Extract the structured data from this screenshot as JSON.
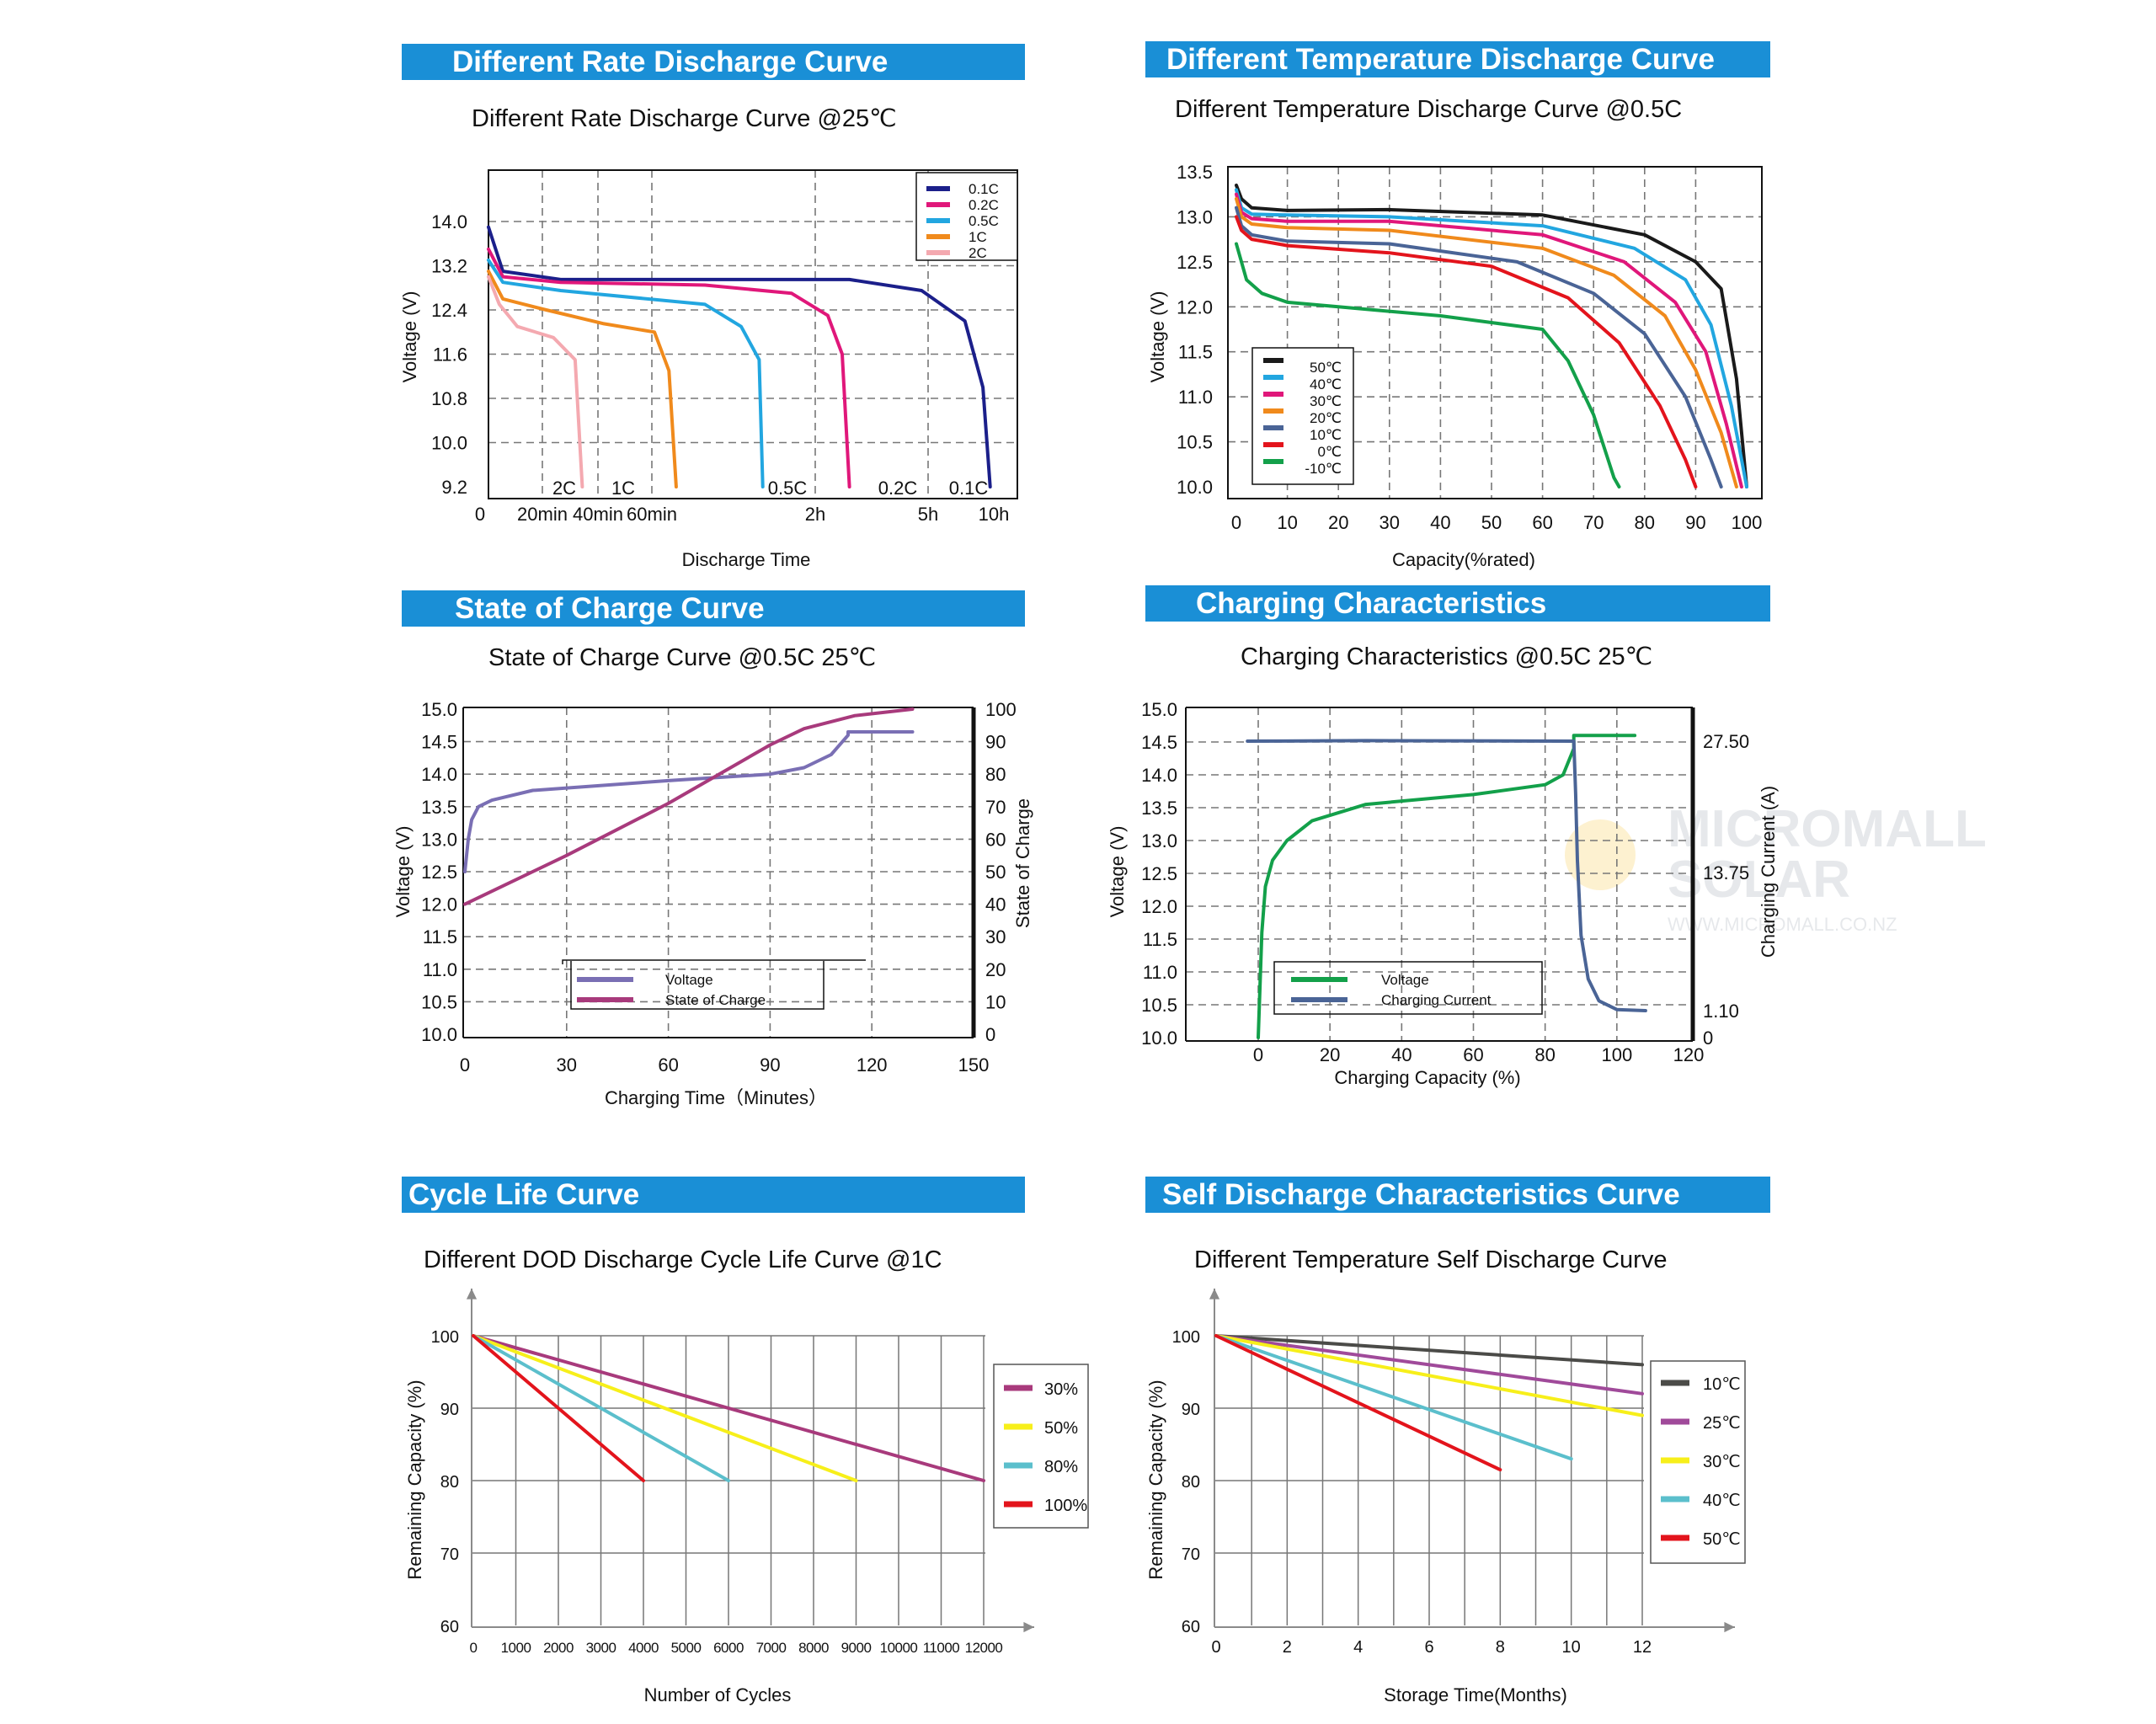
{
  "colors": {
    "banner": "#1a8fd6",
    "grid": "#777777",
    "navy": "#1b1f8a",
    "magenta": "#e0177a",
    "sky": "#22a6e0",
    "orange": "#f08a1c",
    "pink": "#f4a9b0",
    "black": "#1a1a1a",
    "steel": "#4a6496",
    "red": "#e3141c",
    "green": "#13a04a",
    "purple": "#7a6fb4",
    "plum": "#a83a7c",
    "darkgray": "#4b4b48",
    "violet": "#a04a9a",
    "yellow": "#f7ef1a",
    "teal": "#5bbfcc"
  },
  "watermark": {
    "line1": "MICROMALL",
    "line2": "SOLAR",
    "line3": "WWW.MICROMALL.CO.NZ"
  },
  "panels": [
    {
      "banner": "Different Rate Discharge Curve",
      "subtitle": "Different Rate Discharge Curve @25℃"
    },
    {
      "banner": "Different Temperature Discharge Curve",
      "subtitle": "Different Temperature Discharge Curve @0.5C"
    },
    {
      "banner": "State of Charge Curve",
      "subtitle": "State of Charge Curve @0.5C 25℃"
    },
    {
      "banner": "Charging Characteristics",
      "subtitle": "Charging Characteristics @0.5C  25℃"
    },
    {
      "banner": "Cycle Life Curve",
      "subtitle": "Different DOD Discharge Cycle Life Curve @1C"
    },
    {
      "banner": "Self Discharge Characteristics Curve",
      "subtitle": "Different Temperature Self Discharge Curve"
    }
  ],
  "chart_data": [
    {
      "type": "line",
      "title": "Different Rate Discharge Curve @25℃",
      "xlabel": "Discharge Time",
      "ylabel": "Voltage (V)",
      "x_tick_labels": [
        "0",
        "20min",
        "40min",
        "60min",
        "2h",
        "5h",
        "10h"
      ],
      "y_ticks": [
        "9.2",
        "10.0",
        "10.8",
        "11.6",
        "12.4",
        "13.2",
        "14.0"
      ],
      "ylim": [
        9.2,
        14.0
      ],
      "legend_position": "top-right",
      "curve_labels": [
        "2C",
        "1C",
        "0.5C",
        "0.2C",
        "0.1C"
      ],
      "series": [
        {
          "name": "0.1C",
          "color": "#1b1f8a",
          "x": [
            0,
            0.2,
            1,
            3,
            5,
            6,
            6.6,
            6.85,
            6.95
          ],
          "y": [
            13.9,
            13.1,
            12.95,
            12.95,
            12.95,
            12.75,
            12.2,
            11.0,
            9.2
          ]
        },
        {
          "name": "0.2C",
          "color": "#e0177a",
          "x": [
            0,
            0.2,
            1,
            3,
            4.2,
            4.7,
            4.9,
            5.0
          ],
          "y": [
            13.5,
            13.0,
            12.9,
            12.85,
            12.7,
            12.3,
            11.6,
            9.2
          ]
        },
        {
          "name": "0.5C",
          "color": "#22a6e0",
          "x": [
            0,
            0.2,
            1,
            3,
            3.5,
            3.75,
            3.8
          ],
          "y": [
            13.3,
            12.9,
            12.75,
            12.5,
            12.1,
            11.5,
            9.2
          ]
        },
        {
          "name": "1C",
          "color": "#f08a1c",
          "x": [
            0,
            0.2,
            0.8,
            1.6,
            2.3,
            2.5,
            2.6
          ],
          "y": [
            13.1,
            12.6,
            12.4,
            12.15,
            12.0,
            11.3,
            9.2
          ]
        },
        {
          "name": "2C",
          "color": "#f4a9b0",
          "x": [
            0,
            0.15,
            0.4,
            0.9,
            1.2,
            1.3
          ],
          "y": [
            13.0,
            12.5,
            12.1,
            11.9,
            11.5,
            9.2
          ]
        }
      ]
    },
    {
      "type": "line",
      "title": "Different Temperature Discharge Curve @0.5C",
      "xlabel": "Capacity(%rated)",
      "ylabel": "Voltage (V)",
      "xlim": [
        0,
        100
      ],
      "ylim": [
        10.0,
        13.5
      ],
      "x_ticks": [
        "0",
        "10",
        "20",
        "30",
        "40",
        "50",
        "60",
        "70",
        "80",
        "90",
        "100"
      ],
      "y_ticks": [
        "10.0",
        "10.5",
        "11.0",
        "11.5",
        "12.0",
        "12.5",
        "13.0",
        "13.5"
      ],
      "legend_position": "bottom-left",
      "series": [
        {
          "name": "50℃",
          "color": "#1a1a1a",
          "x": [
            0,
            1,
            3,
            10,
            30,
            60,
            80,
            90,
            95,
            98,
            100
          ],
          "y": [
            13.35,
            13.2,
            13.1,
            13.07,
            13.08,
            13.02,
            12.8,
            12.5,
            12.2,
            11.2,
            10.0
          ]
        },
        {
          "name": "40℃",
          "color": "#22a6e0",
          "x": [
            0,
            1,
            3,
            10,
            30,
            60,
            78,
            88,
            93,
            97,
            100
          ],
          "y": [
            13.3,
            13.1,
            13.03,
            13.02,
            13.0,
            12.9,
            12.65,
            12.3,
            11.8,
            10.9,
            10.0
          ]
        },
        {
          "name": "30℃",
          "color": "#e0177a",
          "x": [
            0,
            1,
            3,
            10,
            30,
            60,
            76,
            86,
            92,
            96,
            99
          ],
          "y": [
            13.25,
            13.05,
            12.98,
            12.95,
            12.95,
            12.8,
            12.5,
            12.05,
            11.5,
            10.7,
            10.0
          ]
        },
        {
          "name": "20℃",
          "color": "#f08a1c",
          "x": [
            0,
            1,
            3,
            10,
            30,
            60,
            74,
            84,
            90,
            95,
            98
          ],
          "y": [
            13.2,
            13.0,
            12.92,
            12.88,
            12.85,
            12.65,
            12.35,
            11.9,
            11.3,
            10.6,
            10.0
          ]
        },
        {
          "name": "10℃",
          "color": "#4a6496",
          "x": [
            0,
            1,
            3,
            10,
            30,
            55,
            70,
            80,
            88,
            93,
            95
          ],
          "y": [
            13.1,
            12.9,
            12.8,
            12.73,
            12.7,
            12.5,
            12.15,
            11.7,
            11.0,
            10.3,
            10.0
          ]
        },
        {
          "name": "0℃",
          "color": "#e3141c",
          "x": [
            0,
            1,
            3,
            10,
            30,
            50,
            65,
            75,
            83,
            88,
            90
          ],
          "y": [
            13.0,
            12.85,
            12.75,
            12.68,
            12.6,
            12.45,
            12.1,
            11.6,
            10.9,
            10.3,
            10.0
          ]
        },
        {
          "name": "-10℃",
          "color": "#13a04a",
          "x": [
            0,
            2,
            5,
            10,
            20,
            40,
            60,
            65,
            70,
            74,
            75
          ],
          "y": [
            12.7,
            12.3,
            12.15,
            12.05,
            12.0,
            11.9,
            11.75,
            11.4,
            10.8,
            10.1,
            10.0
          ]
        }
      ]
    },
    {
      "type": "line",
      "title": "State of Charge Curve @0.5C 25℃",
      "xlabel": "Charging Time（Minutes）",
      "ylabel": "Voltage (V)",
      "y2label": "State of Charge",
      "xlim": [
        0,
        150
      ],
      "ylim": [
        10.0,
        15.0
      ],
      "y2lim": [
        0,
        100
      ],
      "x_ticks": [
        "0",
        "30",
        "60",
        "90",
        "120",
        "150"
      ],
      "y_ticks": [
        "10.0",
        "10.5",
        "11.0",
        "11.5",
        "12.0",
        "12.5",
        "13.0",
        "13.5",
        "14.0",
        "14.5",
        "15.0"
      ],
      "y2_ticks": [
        "0",
        "10",
        "20",
        "30",
        "40",
        "50",
        "60",
        "70",
        "80",
        "90",
        "100"
      ],
      "legend_position": "bottom-center",
      "series": [
        {
          "name": "Voltage",
          "axis": "left",
          "color": "#7a6fb4",
          "x": [
            0,
            1,
            2,
            4,
            8,
            20,
            60,
            90,
            100,
            108,
            113,
            113,
            132
          ],
          "y": [
            12.5,
            13.0,
            13.3,
            13.5,
            13.6,
            13.75,
            13.9,
            14.0,
            14.1,
            14.3,
            14.6,
            14.65,
            14.65
          ]
        },
        {
          "name": "State of Charge",
          "axis": "right",
          "color": "#a83a7c",
          "x": [
            0,
            30,
            60,
            90,
            100,
            115,
            132
          ],
          "y": [
            40,
            55,
            71,
            89,
            94,
            98,
            100
          ]
        }
      ]
    },
    {
      "type": "line",
      "title": "Charging Characteristics @0.5C  25℃",
      "xlabel": "Charging Capacity (%)",
      "ylabel": "Voltage (V)",
      "y2label": "Charging Current (A)",
      "xlim": [
        -20,
        120
      ],
      "ylim": [
        10.0,
        15.0
      ],
      "x_ticks": [
        "0",
        "20",
        "40",
        "60",
        "80",
        "100",
        "120"
      ],
      "y_ticks": [
        "10.0",
        "10.5",
        "11.0",
        "11.5",
        "12.0",
        "12.5",
        "13.0",
        "13.5",
        "14.0",
        "14.5",
        "15.0"
      ],
      "y2_ticks": [
        "0",
        "1.10",
        "13.75",
        "27.50"
      ],
      "legend_position": "bottom-center",
      "series": [
        {
          "name": "Voltage",
          "axis": "left",
          "color": "#13a04a",
          "x": [
            0,
            1,
            2,
            4,
            8,
            15,
            30,
            60,
            80,
            85,
            88,
            88,
            105
          ],
          "y": [
            10.0,
            11.6,
            12.3,
            12.7,
            13.0,
            13.3,
            13.55,
            13.7,
            13.85,
            14.0,
            14.4,
            14.6,
            14.6
          ]
        },
        {
          "name": "Charging Current",
          "axis": "right",
          "color": "#4a6496",
          "x": [
            -3,
            30,
            88,
            88.5,
            89,
            90,
            92,
            95,
            100,
            108
          ],
          "y": [
            27.5,
            27.55,
            27.5,
            22.0,
            15.0,
            8.0,
            4.0,
            2.0,
            1.2,
            1.1
          ]
        }
      ]
    },
    {
      "type": "line",
      "title": "Different DOD Discharge Cycle Life Curve @1C",
      "xlabel": "Number of Cycles",
      "ylabel": "Remaining Capacity (%)",
      "xlim": [
        0,
        12000
      ],
      "ylim": [
        60,
        100
      ],
      "x_ticks": [
        "0",
        "1000",
        "2000",
        "3000",
        "4000",
        "5000",
        "6000",
        "7000",
        "8000",
        "9000",
        "10000",
        "11000",
        "12000"
      ],
      "y_ticks": [
        "60",
        "70",
        "80",
        "90",
        "100"
      ],
      "legend_position": "right",
      "series": [
        {
          "name": "30%",
          "color": "#a83a7c",
          "x": [
            0,
            12000
          ],
          "y": [
            100,
            80
          ]
        },
        {
          "name": "50%",
          "color": "#f7ef1a",
          "x": [
            0,
            9000
          ],
          "y": [
            100,
            80
          ]
        },
        {
          "name": "80%",
          "color": "#5bbfcc",
          "x": [
            0,
            6000
          ],
          "y": [
            100,
            80
          ]
        },
        {
          "name": "100%",
          "color": "#e3141c",
          "x": [
            0,
            4000
          ],
          "y": [
            100,
            80
          ]
        }
      ]
    },
    {
      "type": "line",
      "title": "Different Temperature Self Discharge Curve",
      "xlabel": "Storage Time(Months)",
      "ylabel": "Remaining Capacity (%)",
      "xlim": [
        0,
        12
      ],
      "ylim": [
        60,
        100
      ],
      "x_ticks": [
        "0",
        "2",
        "4",
        "6",
        "8",
        "10",
        "12"
      ],
      "y_ticks": [
        "60",
        "70",
        "80",
        "90",
        "100"
      ],
      "legend_position": "right",
      "series": [
        {
          "name": "10℃",
          "color": "#4b4b48",
          "x": [
            0,
            12
          ],
          "y": [
            100,
            96
          ]
        },
        {
          "name": "25℃",
          "color": "#a04a9a",
          "x": [
            0,
            12
          ],
          "y": [
            100,
            92
          ]
        },
        {
          "name": "30℃",
          "color": "#f7ef1a",
          "x": [
            0,
            12
          ],
          "y": [
            100,
            89
          ]
        },
        {
          "name": "40℃",
          "color": "#5bbfcc",
          "x": [
            0,
            10
          ],
          "y": [
            100,
            83
          ]
        },
        {
          "name": "50℃",
          "color": "#e3141c",
          "x": [
            0,
            8
          ],
          "y": [
            100,
            81.5
          ]
        }
      ]
    }
  ]
}
